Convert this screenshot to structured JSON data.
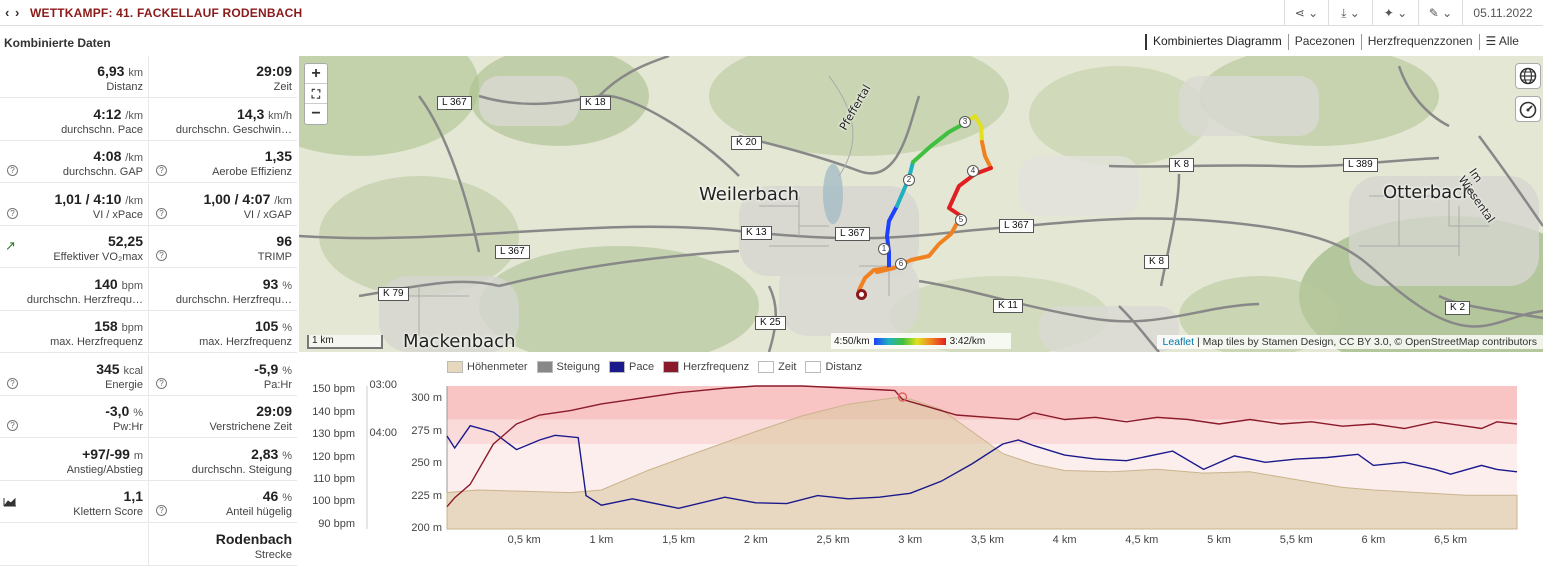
{
  "header": {
    "nav": "‹ ›",
    "title": "WETTKAMPF: 41. FACKELLAUF RODENBACH",
    "buttons": [
      {
        "name": "share-icon",
        "label": "⋖ ⌄"
      },
      {
        "name": "download-icon",
        "label": "⤓ ⌄"
      },
      {
        "name": "magic-icon",
        "label": "✦ ⌄"
      },
      {
        "name": "wrench-icon",
        "label": "✎ ⌄"
      }
    ],
    "date": "05.11.2022"
  },
  "section_title": "Kombinierte Daten",
  "stats": [
    {
      "value": "6,93",
      "unit": "km",
      "label": "Distanz",
      "icon": ""
    },
    {
      "value": "29:09",
      "unit": "",
      "label": "Zeit",
      "icon": ""
    },
    {
      "value": "4:12",
      "unit": "/km",
      "label": "durchschn. Pace",
      "icon": ""
    },
    {
      "value": "14,3",
      "unit": "km/h",
      "label": "durchschn. Geschwin…",
      "icon": ""
    },
    {
      "value": "4:08",
      "unit": "/km",
      "label": "durchschn. GAP",
      "icon": "q"
    },
    {
      "value": "1,35",
      "unit": "",
      "label": "Aerobe Effizienz",
      "icon": "q"
    },
    {
      "value": "1,01 / 4:10",
      "unit": "/km",
      "label": "VI / xPace",
      "icon": "q"
    },
    {
      "value": "1,00 / 4:07",
      "unit": "/km",
      "label": "VI / xGAP",
      "icon": "q"
    },
    {
      "value": "52,25",
      "unit": "",
      "label": "Effektiver VO₂max",
      "icon": "arrow"
    },
    {
      "value": "96",
      "unit": "",
      "label": "TRIMP",
      "icon": "q"
    },
    {
      "value": "140",
      "unit": "bpm",
      "label": "durchschn. Herzfrequ…",
      "icon": ""
    },
    {
      "value": "93",
      "unit": "%",
      "label": "durchschn. Herzfrequ…",
      "icon": ""
    },
    {
      "value": "158",
      "unit": "bpm",
      "label": "max. Herzfrequenz",
      "icon": ""
    },
    {
      "value": "105",
      "unit": "%",
      "label": "max. Herzfrequenz",
      "icon": ""
    },
    {
      "value": "345",
      "unit": "kcal",
      "label": "Energie",
      "icon": "q"
    },
    {
      "value": "-5,9",
      "unit": "%",
      "label": "Pa:Hr",
      "icon": "q"
    },
    {
      "value": "-3,0",
      "unit": "%",
      "label": "Pw:Hr",
      "icon": "q"
    },
    {
      "value": "29:09",
      "unit": "",
      "label": "Verstrichene Zeit",
      "icon": ""
    },
    {
      "value": "+97/-99",
      "unit": "m",
      "label": "Anstieg/Abstieg",
      "icon": ""
    },
    {
      "value": "2,83",
      "unit": "%",
      "label": "durchschn. Steigung",
      "icon": ""
    },
    {
      "value": "1,1",
      "unit": "",
      "label": "Klettern Score",
      "icon": "chart"
    },
    {
      "value": "46",
      "unit": "%",
      "label": "Anteil hügelig",
      "icon": "q"
    },
    {
      "value": "",
      "unit": "",
      "label": "",
      "icon": ""
    },
    {
      "value": "Rodenbach",
      "unit": "",
      "label": "Strecke",
      "icon": ""
    }
  ],
  "tabs": [
    "Kombiniertes Diagramm",
    "Pacezonen",
    "Herzfrequenzzonen",
    "☰ Alle"
  ],
  "map": {
    "places": [
      {
        "name": "Weilerbach",
        "big": true
      },
      {
        "name": "Otterbach",
        "big": true
      },
      {
        "name": "Mackenbach",
        "big": true
      },
      {
        "name": "Pfeffertal",
        "big": false
      },
      {
        "name": "Im Wiesental",
        "big": false
      }
    ],
    "roads": [
      "L 367",
      "K 18",
      "K 20",
      "K 13",
      "L 367",
      "L 367",
      "L 367",
      "K 8",
      "L 389",
      "K 8",
      "K 79",
      "K 25",
      "K 11",
      "K 2"
    ],
    "km_markers": [
      "1",
      "2",
      "3",
      "4",
      "5",
      "6"
    ],
    "zoom_in": "+",
    "zoom_fit": "⛶",
    "zoom_out": "−",
    "scale": "1 km",
    "pace_min": "4:50/km",
    "pace_max": "3:42/km",
    "attribution_link": "Leaflet",
    "attribution_text": " | Map tiles by Stamen Design, CC BY 3.0, © OpenStreetMap contributors",
    "accent_colors": {
      "route_slow": "#1e40ff",
      "route_fast": "#e02020",
      "heart": "#8b1a2a"
    }
  },
  "chart_data": {
    "type": "line",
    "legend": [
      {
        "name": "Höhenmeter",
        "color": "#e6d8bc"
      },
      {
        "name": "Steigung",
        "color": "#888888"
      },
      {
        "name": "Pace",
        "color": "#1a1a8c"
      },
      {
        "name": "Herzfrequenz",
        "color": "#8b1a2a"
      },
      {
        "name": "Zeit",
        "color": "#ffffff"
      },
      {
        "name": "Distanz",
        "color": "#ffffff"
      }
    ],
    "x_ticks": [
      "0,5 km",
      "1 km",
      "1,5 km",
      "2 km",
      "2,5 km",
      "3 km",
      "3,5 km",
      "4 km",
      "4,5 km",
      "5 km",
      "5,5 km",
      "6 km",
      "6,5 km"
    ],
    "xlim": [
      0,
      6.93
    ],
    "hr_ticks": [
      "150 bpm",
      "140 bpm",
      "130 bpm",
      "120 bpm",
      "110 bpm",
      "100 bpm",
      "90 bpm"
    ],
    "hr_lim": [
      88,
      152
    ],
    "pace_ticks": [
      "03:00",
      "04:00"
    ],
    "pace_lim_sec": [
      180,
      360
    ],
    "elev_ticks": [
      "300 m",
      "275 m",
      "250 m",
      "225 m",
      "200 m"
    ],
    "elev_lim": [
      200,
      310
    ],
    "hr_zones": [
      {
        "from": 137,
        "to": 152,
        "color": "#f9c4c4"
      },
      {
        "from": 126,
        "to": 137,
        "color": "#fbdada"
      },
      {
        "from": 88,
        "to": 126,
        "color": "#fdeeee"
      }
    ],
    "hr": [
      [
        0,
        98
      ],
      [
        0.05,
        102
      ],
      [
        0.15,
        108
      ],
      [
        0.3,
        126
      ],
      [
        0.45,
        135
      ],
      [
        0.6,
        139
      ],
      [
        0.8,
        141
      ],
      [
        1.0,
        144
      ],
      [
        1.2,
        146
      ],
      [
        1.5,
        149
      ],
      [
        1.8,
        151
      ],
      [
        2.0,
        152
      ],
      [
        2.3,
        152
      ],
      [
        2.6,
        151
      ],
      [
        2.9,
        150
      ],
      [
        2.95,
        146
      ],
      [
        3.1,
        143
      ],
      [
        3.3,
        139
      ],
      [
        3.5,
        138
      ],
      [
        3.7,
        137
      ],
      [
        3.8,
        140
      ],
      [
        4.0,
        137
      ],
      [
        4.2,
        138
      ],
      [
        4.4,
        136
      ],
      [
        4.6,
        138
      ],
      [
        4.8,
        137
      ],
      [
        5.0,
        135
      ],
      [
        5.2,
        137
      ],
      [
        5.4,
        135
      ],
      [
        5.6,
        136
      ],
      [
        5.8,
        134
      ],
      [
        6.0,
        135
      ],
      [
        6.2,
        133
      ],
      [
        6.4,
        136
      ],
      [
        6.6,
        134
      ],
      [
        6.7,
        133
      ],
      [
        6.8,
        136
      ],
      [
        6.93,
        135
      ]
    ],
    "pace": [
      [
        0,
        243
      ],
      [
        0.05,
        258
      ],
      [
        0.15,
        230
      ],
      [
        0.3,
        238
      ],
      [
        0.45,
        260
      ],
      [
        0.6,
        248
      ],
      [
        0.7,
        242
      ],
      [
        0.85,
        245
      ],
      [
        0.9,
        318
      ],
      [
        1.0,
        330
      ],
      [
        1.2,
        322
      ],
      [
        1.5,
        334
      ],
      [
        1.8,
        320
      ],
      [
        2.0,
        327
      ],
      [
        2.2,
        328
      ],
      [
        2.4,
        318
      ],
      [
        2.6,
        322
      ],
      [
        2.8,
        320
      ],
      [
        3.0,
        315
      ],
      [
        3.2,
        300
      ],
      [
        3.4,
        278
      ],
      [
        3.6,
        253
      ],
      [
        3.7,
        248
      ],
      [
        3.8,
        255
      ],
      [
        4.0,
        267
      ],
      [
        4.2,
        272
      ],
      [
        4.4,
        274
      ],
      [
        4.5,
        270
      ],
      [
        4.7,
        262
      ],
      [
        4.9,
        285
      ],
      [
        5.1,
        268
      ],
      [
        5.3,
        276
      ],
      [
        5.5,
        272
      ],
      [
        5.7,
        270
      ],
      [
        5.9,
        266
      ],
      [
        6.0,
        280
      ],
      [
        6.2,
        276
      ],
      [
        6.4,
        285
      ],
      [
        6.5,
        291
      ],
      [
        6.7,
        280
      ],
      [
        6.8,
        285
      ],
      [
        6.93,
        288
      ]
    ],
    "elev": [
      [
        0,
        228
      ],
      [
        0.2,
        230
      ],
      [
        0.5,
        229
      ],
      [
        0.8,
        228
      ],
      [
        1.0,
        230
      ],
      [
        1.3,
        245
      ],
      [
        1.6,
        258
      ],
      [
        2.0,
        275
      ],
      [
        2.3,
        287
      ],
      [
        2.6,
        296
      ],
      [
        2.9,
        301
      ],
      [
        3.0,
        300
      ],
      [
        3.2,
        292
      ],
      [
        3.4,
        275
      ],
      [
        3.6,
        258
      ],
      [
        3.8,
        250
      ],
      [
        4.0,
        245
      ],
      [
        4.3,
        244
      ],
      [
        4.6,
        246
      ],
      [
        4.9,
        243
      ],
      [
        5.2,
        244
      ],
      [
        5.5,
        238
      ],
      [
        5.8,
        232
      ],
      [
        6.0,
        230
      ],
      [
        6.3,
        228
      ],
      [
        6.6,
        226
      ],
      [
        6.93,
        226
      ]
    ]
  }
}
